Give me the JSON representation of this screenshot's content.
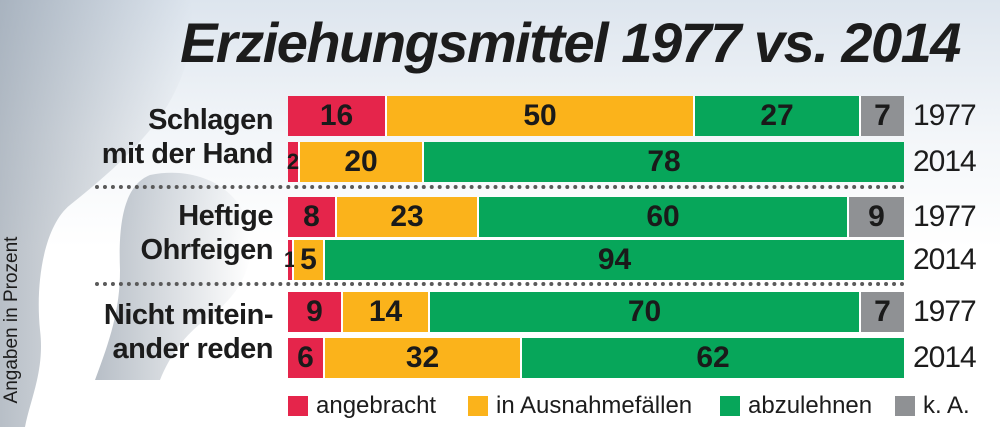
{
  "title": "Erziehungsmittel 1977 vs. 2014",
  "side_note": "Angaben in Prozent",
  "colors": {
    "angebracht": "#e5254b",
    "in_ausnahmefaellen": "#fbb31b",
    "abzulehnen": "#07a65a",
    "ka": "#8f9194"
  },
  "chart_data": {
    "type": "bar",
    "stacked": true,
    "orientation": "horizontal",
    "title": "Erziehungsmittel 1977 vs. 2014",
    "xlabel": "",
    "ylabel": "Angaben in Prozent",
    "xlim": [
      0,
      100
    ],
    "legend_position": "bottom",
    "series_names": [
      "angebracht",
      "in Ausnahmefällen",
      "abzulehnen",
      "k. A."
    ],
    "series_keys": [
      "angebracht",
      "in_ausnahmefaellen",
      "abzulehnen",
      "ka"
    ],
    "groups": [
      {
        "label_lines": [
          "Schlagen",
          "mit der Hand"
        ],
        "rows": [
          {
            "year": "1977",
            "values": [
              16,
              50,
              27,
              7
            ]
          },
          {
            "year": "2014",
            "values": [
              2,
              20,
              78,
              0
            ]
          }
        ]
      },
      {
        "label_lines": [
          "Heftige",
          "Ohrfeigen"
        ],
        "rows": [
          {
            "year": "1977",
            "values": [
              8,
              23,
              60,
              9
            ]
          },
          {
            "year": "2014",
            "values": [
              1,
              5,
              94,
              0
            ]
          }
        ]
      },
      {
        "label_lines": [
          "Nicht mitein-",
          "ander reden"
        ],
        "rows": [
          {
            "year": "1977",
            "values": [
              9,
              14,
              70,
              7
            ]
          },
          {
            "year": "2014",
            "values": [
              6,
              32,
              62,
              0
            ]
          }
        ]
      }
    ]
  },
  "legend": [
    {
      "label": "angebracht",
      "color_key": "angebracht"
    },
    {
      "label": "in Ausnahmefällen",
      "color_key": "in_ausnahmefaellen"
    },
    {
      "label": "abzulehnen",
      "color_key": "abzulehnen"
    },
    {
      "label": "k. A.",
      "color_key": "ka"
    }
  ]
}
